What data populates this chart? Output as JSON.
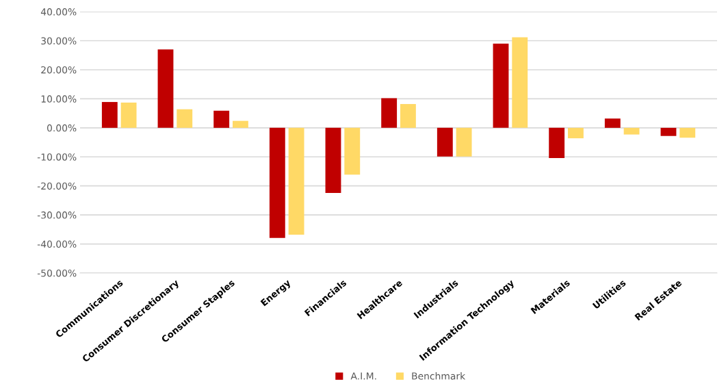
{
  "chart_data": {
    "type": "bar",
    "categories": [
      "Communications",
      "Consumer Discretionary",
      "Consumer Staples",
      "Energy",
      "Financials",
      "Healthcare",
      "Industrials",
      "Information Technology",
      "Materials",
      "Utilities",
      "Real Estate"
    ],
    "series": [
      {
        "name": "A.I.M.",
        "color": "#c00000",
        "values": [
          8.9,
          27.0,
          5.9,
          -37.9,
          -22.4,
          10.2,
          -9.9,
          29.0,
          -10.4,
          3.2,
          -2.8
        ]
      },
      {
        "name": "Benchmark",
        "color": "#ffd966",
        "values": [
          8.7,
          6.4,
          2.4,
          -36.8,
          -16.1,
          8.2,
          -9.9,
          31.2,
          -3.6,
          -2.3,
          -3.4
        ]
      }
    ],
    "ylim": [
      -50,
      40
    ],
    "yticks": [
      {
        "value": -50,
        "label": "-50.00%"
      },
      {
        "value": -40,
        "label": "-40.00%"
      },
      {
        "value": -30,
        "label": "-30.00%"
      },
      {
        "value": -20,
        "label": "-20.00%"
      },
      {
        "value": -10,
        "label": "-10.00%"
      },
      {
        "value": 0,
        "label": "0.00%"
      },
      {
        "value": 10,
        "label": "10.00%"
      },
      {
        "value": 20,
        "label": "20.00%"
      },
      {
        "value": 30,
        "label": "30.00%"
      },
      {
        "value": 40,
        "label": "40.00%"
      }
    ],
    "grid": "y",
    "legend": "bottom"
  }
}
